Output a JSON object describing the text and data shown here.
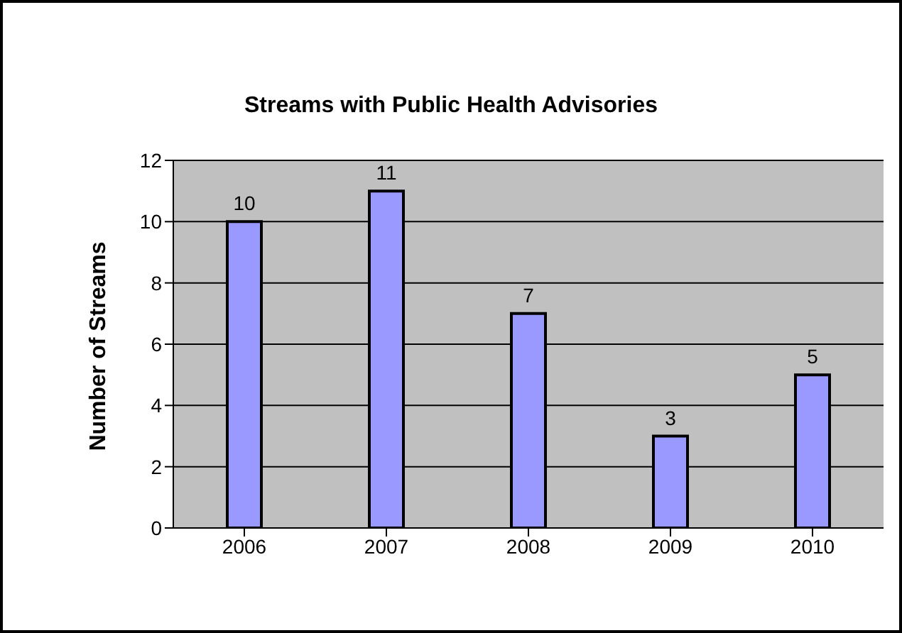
{
  "chart_data": {
    "type": "bar",
    "title": "Streams with Public Health Advisories",
    "ylabel": "Number of Streams",
    "categories": [
      "2006",
      "2007",
      "2008",
      "2009",
      "2010"
    ],
    "values": [
      10,
      11,
      7,
      3,
      5
    ],
    "color": "#9999ff",
    "ylim": [
      0,
      12
    ],
    "yticks": [
      0,
      2,
      4,
      6,
      8,
      10,
      12
    ],
    "grid": "y",
    "data_labels": true,
    "legend": false
  }
}
